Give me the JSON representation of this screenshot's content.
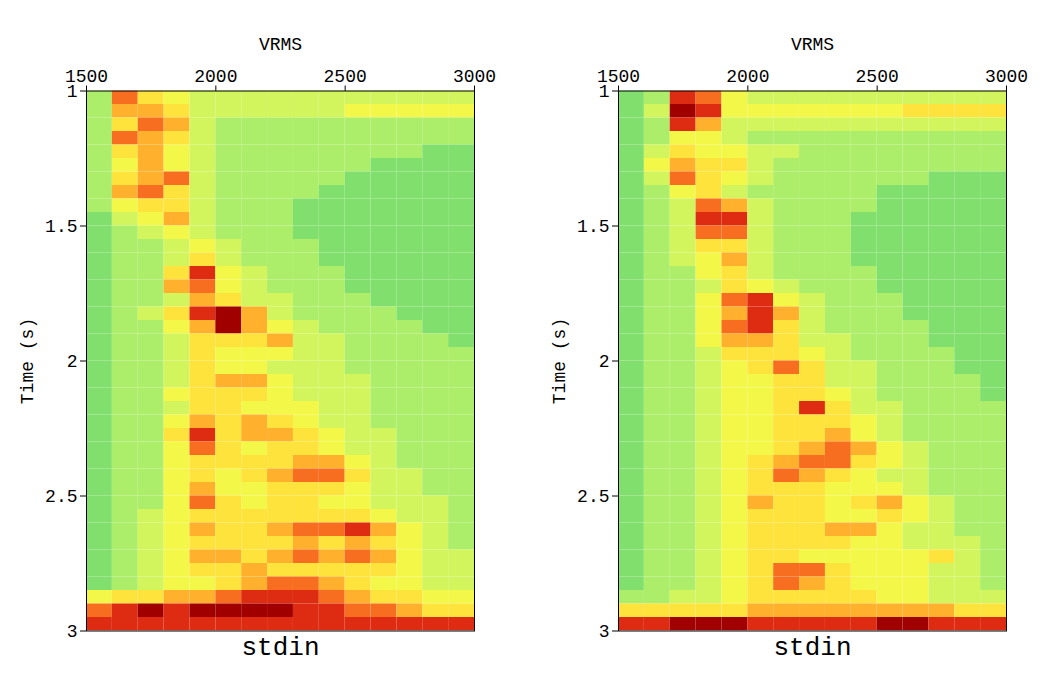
{
  "chart_data": [
    {
      "type": "heatmap",
      "title": "stdin",
      "x_label": "VRMS",
      "y_label": "Time (s)",
      "xlim": [
        1500,
        3000
      ],
      "xticks": [
        1500,
        2000,
        2500,
        3000
      ],
      "ylim": [
        1,
        3
      ],
      "yticks": [
        1,
        1.5,
        2,
        2.5,
        3
      ],
      "zlim": [
        0,
        9
      ],
      "x_bins": [
        1500,
        1600,
        1700,
        1800,
        1900,
        2000,
        2100,
        2200,
        2300,
        2400,
        2500,
        2600,
        2700,
        2800,
        2900,
        3000
      ],
      "y_bins": [
        1,
        1.05,
        1.1,
        1.15,
        1.2,
        1.25,
        1.3,
        1.35,
        1.4,
        1.45,
        1.5,
        1.55,
        1.6,
        1.65,
        1.7,
        1.75,
        1.8,
        1.85,
        1.9,
        1.95,
        2,
        2.05,
        2.1,
        2.15,
        2.2,
        2.25,
        2.3,
        2.35,
        2.4,
        2.45,
        2.5,
        2.55,
        2.6,
        2.65,
        2.7,
        2.75,
        2.8,
        2.85,
        2.9,
        2.95,
        3
      ],
      "values": [
        [
          2,
          7,
          5,
          4,
          3,
          3,
          3,
          3,
          3,
          3,
          3,
          3,
          3,
          3,
          3
        ],
        [
          2,
          6,
          6,
          5,
          3,
          3,
          3,
          3,
          3,
          3,
          4,
          4,
          4,
          4,
          4
        ],
        [
          2,
          5,
          7,
          6,
          3,
          2,
          2,
          2,
          2,
          2,
          2,
          2,
          2,
          2,
          2
        ],
        [
          2,
          7,
          6,
          5,
          3,
          2,
          2,
          2,
          2,
          2,
          2,
          2,
          2,
          2,
          2
        ],
        [
          2,
          5,
          6,
          4,
          3,
          2,
          2,
          2,
          2,
          2,
          2,
          2,
          2,
          1,
          1
        ],
        [
          2,
          4,
          6,
          4,
          3,
          2,
          2,
          2,
          2,
          2,
          2,
          1,
          1,
          1,
          1
        ],
        [
          2,
          5,
          6,
          7,
          3,
          2,
          2,
          2,
          2,
          2,
          1,
          1,
          1,
          1,
          1
        ],
        [
          2,
          6,
          7,
          5,
          3,
          2,
          2,
          2,
          2,
          1,
          1,
          1,
          1,
          1,
          1
        ],
        [
          2,
          4,
          5,
          5,
          3,
          2,
          2,
          2,
          1,
          1,
          1,
          1,
          1,
          1,
          1
        ],
        [
          1,
          3,
          4,
          6,
          3,
          2,
          2,
          2,
          1,
          1,
          1,
          1,
          1,
          1,
          1
        ],
        [
          1,
          2,
          3,
          4,
          3,
          2,
          2,
          2,
          1,
          1,
          1,
          1,
          1,
          1,
          1
        ],
        [
          1,
          2,
          2,
          3,
          4,
          3,
          2,
          2,
          2,
          1,
          1,
          1,
          1,
          1,
          1
        ],
        [
          1,
          2,
          2,
          3,
          5,
          3,
          2,
          2,
          2,
          1,
          1,
          1,
          1,
          1,
          1
        ],
        [
          1,
          2,
          2,
          5,
          8,
          4,
          3,
          2,
          2,
          2,
          1,
          1,
          1,
          1,
          1
        ],
        [
          1,
          2,
          2,
          6,
          7,
          4,
          3,
          2,
          2,
          2,
          1,
          1,
          1,
          1,
          1
        ],
        [
          1,
          2,
          2,
          3,
          6,
          5,
          3,
          3,
          2,
          2,
          2,
          1,
          1,
          1,
          1
        ],
        [
          1,
          2,
          3,
          5,
          8,
          9,
          6,
          3,
          2,
          2,
          2,
          2,
          1,
          1,
          1
        ],
        [
          1,
          2,
          2,
          4,
          6,
          9,
          6,
          4,
          3,
          2,
          2,
          2,
          2,
          1,
          1
        ],
        [
          1,
          2,
          2,
          3,
          5,
          5,
          5,
          6,
          3,
          3,
          2,
          2,
          2,
          2,
          1
        ],
        [
          1,
          2,
          2,
          3,
          5,
          4,
          4,
          4,
          3,
          3,
          2,
          2,
          2,
          2,
          2
        ],
        [
          1,
          2,
          2,
          3,
          5,
          4,
          4,
          3,
          3,
          3,
          2,
          2,
          2,
          2,
          2
        ],
        [
          1,
          2,
          2,
          3,
          5,
          6,
          6,
          4,
          3,
          3,
          3,
          2,
          2,
          2,
          2
        ],
        [
          1,
          2,
          2,
          4,
          5,
          5,
          5,
          4,
          3,
          3,
          3,
          2,
          2,
          2,
          2
        ],
        [
          1,
          2,
          2,
          3,
          5,
          5,
          4,
          4,
          4,
          3,
          3,
          2,
          2,
          2,
          2
        ],
        [
          1,
          2,
          2,
          4,
          6,
          5,
          6,
          5,
          4,
          3,
          3,
          2,
          2,
          2,
          2
        ],
        [
          1,
          2,
          2,
          5,
          8,
          5,
          6,
          6,
          5,
          4,
          3,
          3,
          2,
          2,
          2
        ],
        [
          1,
          2,
          2,
          4,
          7,
          5,
          4,
          5,
          5,
          4,
          3,
          3,
          2,
          2,
          2
        ],
        [
          1,
          2,
          2,
          4,
          5,
          5,
          5,
          5,
          6,
          6,
          4,
          3,
          2,
          2,
          2
        ],
        [
          1,
          2,
          2,
          4,
          5,
          4,
          5,
          6,
          7,
          7,
          5,
          3,
          3,
          2,
          2
        ],
        [
          1,
          2,
          2,
          4,
          6,
          4,
          4,
          5,
          5,
          5,
          4,
          3,
          3,
          2,
          2
        ],
        [
          1,
          2,
          2,
          4,
          7,
          5,
          4,
          5,
          5,
          4,
          4,
          3,
          3,
          3,
          2
        ],
        [
          1,
          2,
          3,
          4,
          5,
          5,
          5,
          5,
          5,
          5,
          5,
          4,
          3,
          3,
          2
        ],
        [
          1,
          2,
          3,
          4,
          6,
          5,
          5,
          6,
          7,
          7,
          8,
          6,
          4,
          3,
          2
        ],
        [
          1,
          2,
          3,
          4,
          5,
          5,
          5,
          5,
          6,
          5,
          6,
          5,
          4,
          3,
          2
        ],
        [
          1,
          2,
          3,
          4,
          6,
          6,
          5,
          6,
          7,
          6,
          7,
          6,
          4,
          3,
          3
        ],
        [
          1,
          2,
          3,
          4,
          5,
          5,
          6,
          5,
          5,
          5,
          5,
          5,
          4,
          3,
          3
        ],
        [
          1,
          2,
          3,
          4,
          4,
          5,
          6,
          7,
          7,
          6,
          5,
          4,
          4,
          3,
          3
        ],
        [
          4,
          5,
          5,
          6,
          6,
          7,
          8,
          8,
          8,
          7,
          6,
          5,
          5,
          4,
          4
        ],
        [
          7,
          8,
          9,
          8,
          9,
          9,
          9,
          9,
          8,
          8,
          7,
          7,
          6,
          5,
          5
        ],
        [
          8,
          8,
          8,
          8,
          8,
          8,
          8,
          8,
          8,
          8,
          8,
          8,
          8,
          8,
          8
        ]
      ]
    },
    {
      "type": "heatmap",
      "title": "stdin",
      "x_label": "VRMS",
      "y_label": "Time (s)",
      "xlim": [
        1500,
        3000
      ],
      "xticks": [
        1500,
        2000,
        2500,
        3000
      ],
      "ylim": [
        1,
        3
      ],
      "yticks": [
        1,
        1.5,
        2,
        2.5,
        3
      ],
      "zlim": [
        0,
        9
      ],
      "x_bins": [
        1500,
        1600,
        1700,
        1800,
        1900,
        2000,
        2100,
        2200,
        2300,
        2400,
        2500,
        2600,
        2700,
        2800,
        2900,
        3000
      ],
      "y_bins": [
        1,
        1.05,
        1.1,
        1.15,
        1.2,
        1.25,
        1.3,
        1.35,
        1.4,
        1.45,
        1.5,
        1.55,
        1.6,
        1.65,
        1.7,
        1.75,
        1.8,
        1.85,
        1.9,
        1.95,
        2,
        2.05,
        2.1,
        2.15,
        2.2,
        2.25,
        2.3,
        2.35,
        2.4,
        2.45,
        2.5,
        2.55,
        2.6,
        2.65,
        2.7,
        2.75,
        2.8,
        2.85,
        2.9,
        2.95,
        3
      ],
      "values": [
        [
          1,
          2,
          8,
          7,
          4,
          3,
          3,
          3,
          3,
          3,
          3,
          3,
          3,
          3,
          3
        ],
        [
          1,
          3,
          9,
          8,
          4,
          4,
          4,
          4,
          4,
          4,
          4,
          5,
          5,
          5,
          5
        ],
        [
          1,
          2,
          8,
          6,
          3,
          3,
          3,
          3,
          3,
          3,
          3,
          3,
          3,
          3,
          3
        ],
        [
          1,
          2,
          4,
          4,
          3,
          2,
          2,
          2,
          2,
          2,
          2,
          2,
          2,
          2,
          2
        ],
        [
          1,
          3,
          5,
          4,
          4,
          3,
          3,
          2,
          2,
          2,
          2,
          2,
          2,
          2,
          2
        ],
        [
          1,
          4,
          6,
          5,
          5,
          3,
          2,
          2,
          2,
          2,
          2,
          2,
          2,
          2,
          2
        ],
        [
          1,
          3,
          7,
          5,
          4,
          3,
          2,
          2,
          2,
          2,
          2,
          2,
          1,
          1,
          1
        ],
        [
          1,
          2,
          4,
          5,
          3,
          2,
          2,
          2,
          2,
          2,
          1,
          1,
          1,
          1,
          1
        ],
        [
          1,
          2,
          3,
          7,
          6,
          3,
          2,
          2,
          2,
          2,
          1,
          1,
          1,
          1,
          1
        ],
        [
          1,
          2,
          3,
          8,
          8,
          3,
          2,
          2,
          2,
          1,
          1,
          1,
          1,
          1,
          1
        ],
        [
          1,
          2,
          3,
          7,
          7,
          3,
          2,
          2,
          2,
          1,
          1,
          1,
          1,
          1,
          1
        ],
        [
          1,
          2,
          3,
          5,
          5,
          3,
          2,
          2,
          2,
          1,
          1,
          1,
          1,
          1,
          1
        ],
        [
          1,
          2,
          3,
          4,
          6,
          3,
          2,
          2,
          2,
          1,
          1,
          1,
          1,
          1,
          1
        ],
        [
          1,
          2,
          2,
          4,
          5,
          3,
          2,
          2,
          2,
          2,
          1,
          1,
          1,
          1,
          1
        ],
        [
          1,
          2,
          2,
          3,
          5,
          4,
          3,
          2,
          2,
          2,
          1,
          1,
          1,
          1,
          1
        ],
        [
          1,
          2,
          2,
          4,
          7,
          8,
          4,
          3,
          2,
          2,
          2,
          1,
          1,
          1,
          1
        ],
        [
          1,
          2,
          2,
          4,
          6,
          8,
          6,
          3,
          2,
          2,
          2,
          1,
          1,
          1,
          1
        ],
        [
          1,
          2,
          2,
          4,
          7,
          8,
          5,
          3,
          2,
          2,
          2,
          2,
          1,
          1,
          1
        ],
        [
          1,
          2,
          2,
          4,
          6,
          6,
          5,
          3,
          3,
          2,
          2,
          2,
          1,
          1,
          1
        ],
        [
          1,
          2,
          2,
          3,
          5,
          5,
          5,
          4,
          3,
          2,
          2,
          2,
          2,
          1,
          1
        ],
        [
          1,
          2,
          2,
          3,
          4,
          5,
          7,
          5,
          3,
          3,
          2,
          2,
          2,
          1,
          1
        ],
        [
          1,
          2,
          2,
          3,
          4,
          4,
          5,
          5,
          3,
          3,
          2,
          2,
          2,
          2,
          1
        ],
        [
          1,
          2,
          2,
          3,
          4,
          4,
          5,
          5,
          4,
          3,
          2,
          2,
          2,
          2,
          1
        ],
        [
          1,
          2,
          2,
          3,
          4,
          4,
          5,
          8,
          5,
          3,
          3,
          2,
          2,
          2,
          2
        ],
        [
          1,
          2,
          2,
          3,
          4,
          4,
          5,
          5,
          5,
          4,
          3,
          2,
          2,
          2,
          2
        ],
        [
          1,
          2,
          2,
          3,
          4,
          4,
          5,
          5,
          6,
          4,
          3,
          2,
          2,
          2,
          2
        ],
        [
          1,
          2,
          2,
          3,
          4,
          4,
          5,
          6,
          7,
          6,
          4,
          3,
          2,
          2,
          2
        ],
        [
          1,
          2,
          2,
          3,
          4,
          5,
          6,
          7,
          7,
          5,
          4,
          3,
          2,
          2,
          2
        ],
        [
          1,
          2,
          2,
          3,
          4,
          5,
          7,
          6,
          5,
          4,
          3,
          3,
          2,
          2,
          2
        ],
        [
          1,
          2,
          2,
          3,
          4,
          5,
          5,
          5,
          4,
          4,
          4,
          3,
          2,
          2,
          2
        ],
        [
          1,
          2,
          2,
          3,
          4,
          6,
          5,
          5,
          4,
          5,
          6,
          4,
          3,
          2,
          2
        ],
        [
          1,
          2,
          2,
          3,
          4,
          5,
          5,
          5,
          4,
          4,
          5,
          4,
          3,
          2,
          2
        ],
        [
          1,
          2,
          2,
          3,
          4,
          5,
          5,
          5,
          6,
          6,
          4,
          3,
          3,
          2,
          2
        ],
        [
          1,
          2,
          2,
          3,
          4,
          5,
          5,
          5,
          5,
          4,
          4,
          3,
          3,
          3,
          2
        ],
        [
          1,
          2,
          2,
          3,
          4,
          5,
          5,
          4,
          4,
          4,
          4,
          4,
          5,
          3,
          2
        ],
        [
          1,
          2,
          2,
          3,
          4,
          5,
          7,
          7,
          5,
          4,
          4,
          4,
          3,
          3,
          2
        ],
        [
          1,
          2,
          2,
          3,
          4,
          5,
          7,
          6,
          5,
          4,
          4,
          4,
          3,
          3,
          2
        ],
        [
          2,
          2,
          3,
          3,
          4,
          5,
          5,
          5,
          5,
          5,
          4,
          4,
          3,
          3,
          3
        ],
        [
          5,
          5,
          5,
          5,
          5,
          6,
          6,
          6,
          6,
          6,
          6,
          6,
          6,
          5,
          5
        ],
        [
          8,
          8,
          9,
          9,
          9,
          8,
          8,
          8,
          8,
          8,
          9,
          9,
          8,
          8,
          8
        ]
      ]
    }
  ]
}
